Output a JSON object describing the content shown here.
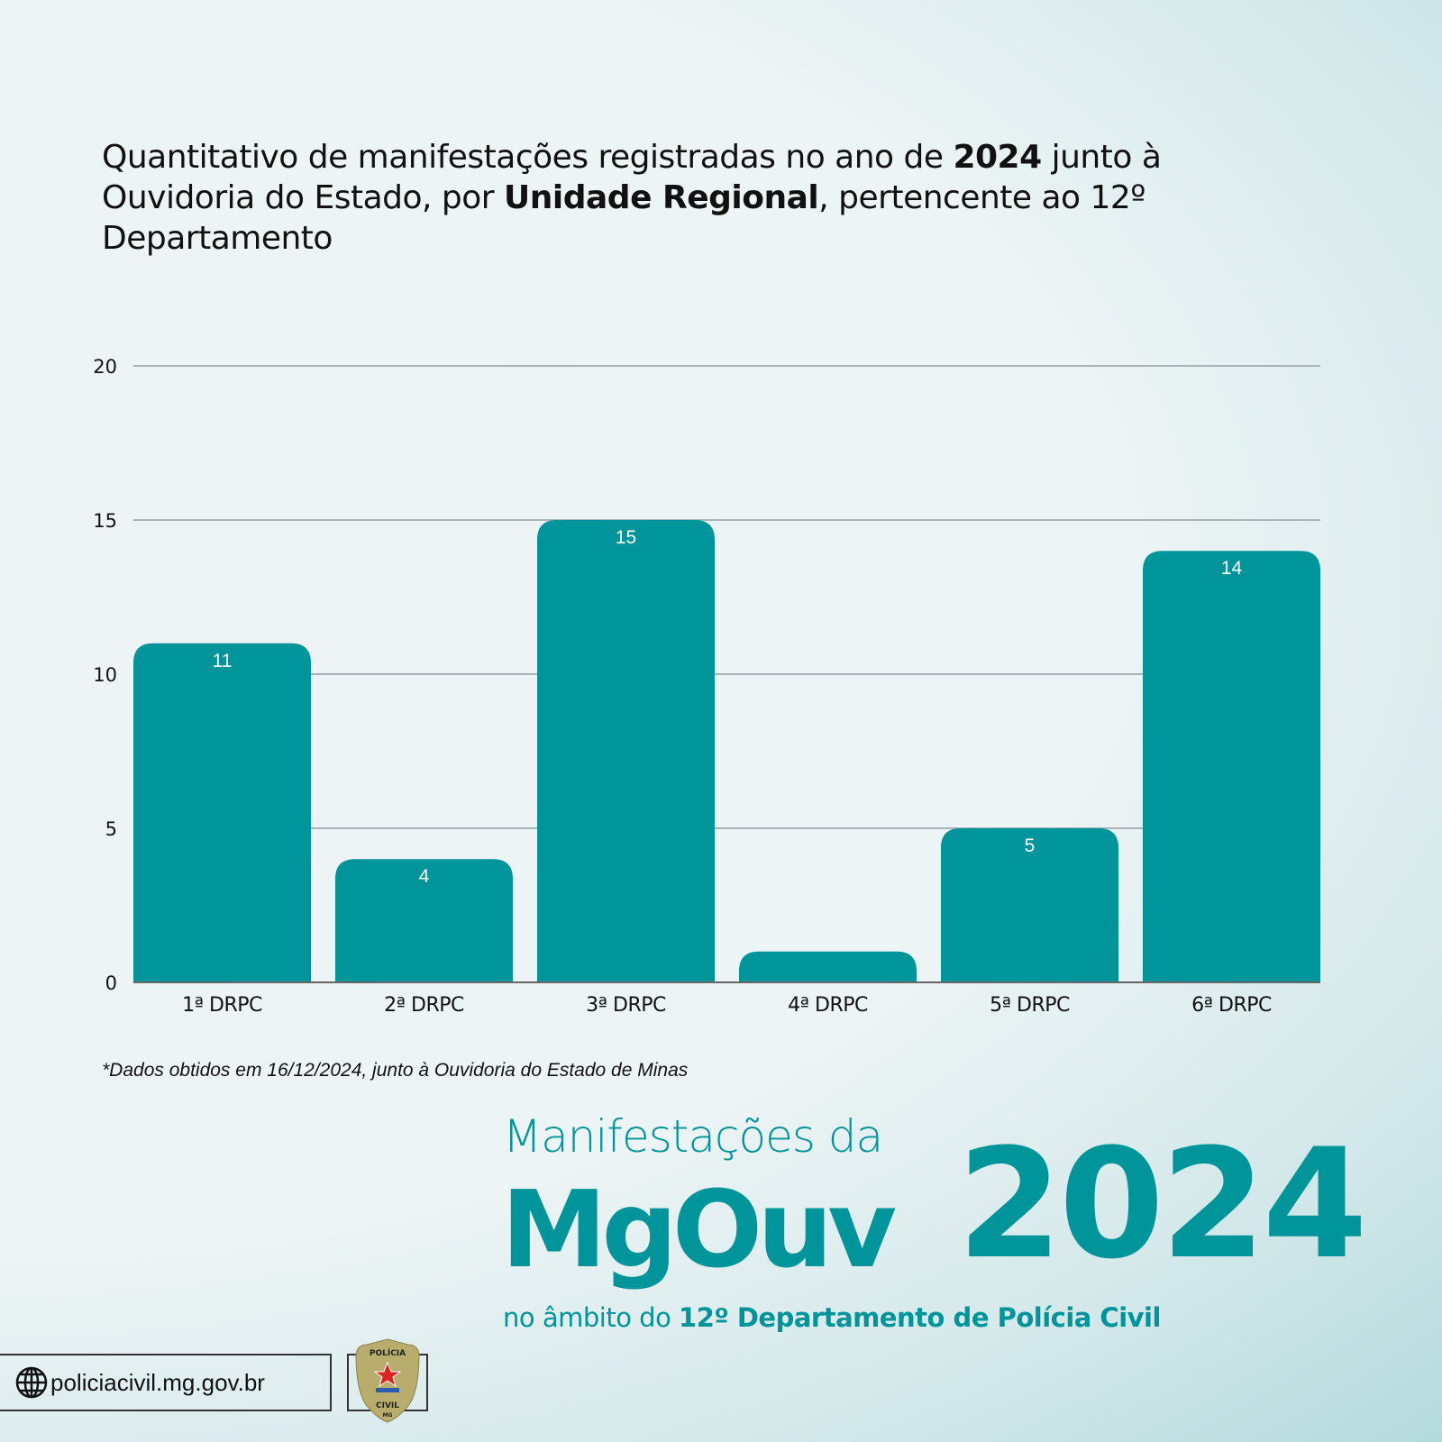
{
  "title": {
    "parts": [
      {
        "text": "Quantitativo de manifestações registradas no ano de ",
        "bold": false
      },
      {
        "text": "2024",
        "bold": true
      },
      {
        "text": " junto à Ouvidoria do Estado, por ",
        "bold": false
      },
      {
        "text": "Unidade Regional",
        "bold": true
      },
      {
        "text": ", pertencente ao 12º Departamento",
        "bold": false
      }
    ]
  },
  "chart_data": {
    "type": "bar",
    "categories": [
      "1ª DRPC",
      "2ª DRPC",
      "3ª DRPC",
      "4ª DRPC",
      "5ª DRPC",
      "6ª DRPC"
    ],
    "values": [
      11,
      4,
      15,
      1,
      5,
      14
    ],
    "data_labels": [
      "11",
      "4",
      "15",
      "",
      "5",
      "14"
    ],
    "ylim": [
      0,
      20
    ],
    "yticks": [
      0,
      5,
      10,
      15,
      20
    ],
    "grid": true,
    "bar_color": "#00959a",
    "xlabel": "",
    "ylabel": ""
  },
  "note": "*Dados obtidos em 16/12/2024, junto à Ouvidoria do Estado de Minas",
  "brand": {
    "line1": "Manifestações da",
    "name": "MgOuv",
    "year": "2024",
    "sub_regular": "no âmbito do ",
    "sub_bold": "12º Departamento de Polícia Civil",
    "color": "#00959a"
  },
  "footer": {
    "website": "policiacivil.mg.gov.br",
    "icon": "globe-icon",
    "badge_text_top": "POLÍCIA",
    "badge_text_bottom": "CIVIL",
    "badge_text_state": "MG"
  }
}
